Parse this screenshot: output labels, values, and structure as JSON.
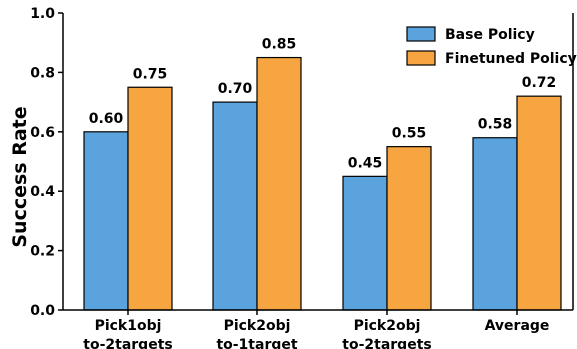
{
  "chart_data": {
    "type": "bar",
    "title": "",
    "xlabel": "",
    "ylabel": "Success Rate",
    "ylim": [
      0,
      1.0
    ],
    "yticks": [
      "0.0",
      "0.2",
      "0.4",
      "0.6",
      "0.8",
      "1.0"
    ],
    "categories": [
      [
        "Pick1obj",
        "to-2targets"
      ],
      [
        "Pick2obj",
        "to-1target"
      ],
      [
        "Pick2obj",
        "to-2targets"
      ],
      [
        "Average"
      ]
    ],
    "series": [
      {
        "name": "Base Policy",
        "color": "#5BA3DC",
        "values": [
          0.6,
          0.7,
          0.45,
          0.58
        ],
        "labels": [
          "0.60",
          "0.70",
          "0.45",
          "0.58"
        ]
      },
      {
        "name": "Finetuned Policy",
        "color": "#F7A541",
        "values": [
          0.75,
          0.85,
          0.55,
          0.72
        ],
        "labels": [
          "0.75",
          "0.85",
          "0.55",
          "0.72"
        ]
      }
    ],
    "legend_position": "top-right",
    "grid": false
  }
}
